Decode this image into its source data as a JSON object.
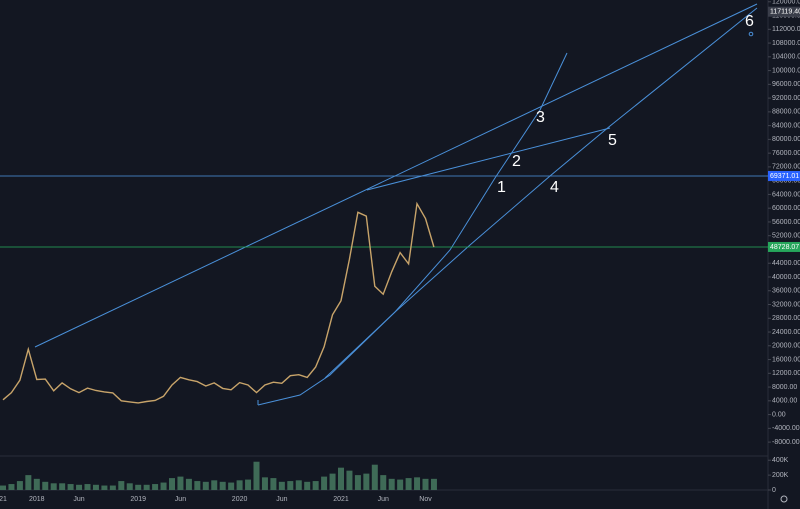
{
  "chart_data": {
    "type": "line",
    "categories": [
      "21",
      null,
      null,
      null,
      "2018",
      null,
      null,
      null,
      null,
      "Jun",
      null,
      null,
      null,
      null,
      null,
      null,
      "2019",
      null,
      null,
      null,
      null,
      "Jun",
      null,
      null,
      null,
      null,
      null,
      null,
      "2020",
      null,
      null,
      null,
      null,
      "Jun",
      null,
      null,
      null,
      null,
      null,
      null,
      "2021",
      null,
      null,
      null,
      null,
      "Jun",
      null,
      null,
      null,
      null,
      "Nov",
      null
    ],
    "series": [
      {
        "color": "#c8a46a",
        "values": [
          4300,
          6400,
          10000,
          19000,
          10200,
          10300,
          6900,
          9200,
          7500,
          6400,
          7700,
          7000,
          6600,
          6300,
          4000,
          3700,
          3400,
          3800,
          4100,
          5300,
          8600,
          10800,
          10100,
          9600,
          8300,
          9200,
          7600,
          7200,
          9300,
          8600,
          6400,
          8600,
          9400,
          9100,
          11300,
          11600,
          10800,
          13800,
          19700,
          29000,
          33100,
          45100,
          58800,
          57700,
          37300,
          35000,
          41500,
          47100,
          43800,
          61300,
          57000,
          48728
        ]
      }
    ],
    "volume": {
      "color": "#3f6b57",
      "values": [
        60000,
        80000,
        120000,
        200000,
        150000,
        110000,
        90000,
        90000,
        80000,
        70000,
        80000,
        70000,
        60000,
        60000,
        120000,
        90000,
        70000,
        70000,
        80000,
        100000,
        160000,
        180000,
        150000,
        120000,
        110000,
        130000,
        110000,
        100000,
        130000,
        140000,
        380000,
        170000,
        160000,
        110000,
        120000,
        130000,
        110000,
        120000,
        180000,
        220000,
        300000,
        260000,
        200000,
        220000,
        340000,
        200000,
        150000,
        140000,
        160000,
        170000,
        150000,
        150000
      ],
      "ylim": [
        0,
        430000
      ],
      "yticks": [
        {
          "value": 400000,
          "label": "400K"
        },
        {
          "value": 200000,
          "label": "200K"
        },
        0
      ]
    },
    "ylim": [
      -11750,
      120520
    ],
    "yticks": [
      {
        "value": 120000,
        "label": "120000.00"
      },
      {
        "value": 116000,
        "label": "116000.00"
      },
      {
        "value": 112000,
        "label": "112000.00"
      },
      {
        "value": 108000,
        "label": "108000.00"
      },
      {
        "value": 104000,
        "label": "104000.00"
      },
      {
        "value": 100000,
        "label": "100000.00"
      },
      {
        "value": 96000,
        "label": "96000.00"
      },
      {
        "value": 92000,
        "label": "92000.00"
      },
      {
        "value": 88000,
        "label": "88000.00"
      },
      {
        "value": 84000,
        "label": "84000.00"
      },
      {
        "value": 80000,
        "label": "80000.00"
      },
      {
        "value": 76000,
        "label": "76000.00"
      },
      {
        "value": 72000,
        "label": "72000.00"
      },
      {
        "value": 68000,
        "label": "68000.00"
      },
      {
        "value": 64000,
        "label": "64000.00"
      },
      {
        "value": 60000,
        "label": "60000.00"
      },
      {
        "value": 56000,
        "label": "56000.00"
      },
      {
        "value": 52000,
        "label": "52000.00"
      },
      {
        "value": 48000,
        "label": "48000.00"
      },
      {
        "value": 44000,
        "label": "44000.00"
      },
      {
        "value": 40000,
        "label": "40000.00"
      },
      {
        "value": 36000,
        "label": "36000.00"
      },
      {
        "value": 32000,
        "label": "32000.00"
      },
      {
        "value": 28000,
        "label": "28000.00"
      },
      {
        "value": 24000,
        "label": "24000.00"
      },
      {
        "value": 20000,
        "label": "20000.00"
      },
      {
        "value": 16000,
        "label": "16000.00"
      },
      {
        "value": 12000,
        "label": "12000.00"
      },
      {
        "value": 8000,
        "label": "8000.00"
      },
      {
        "value": 4000,
        "label": "4000.00"
      },
      {
        "value": 0,
        "label": "0.00"
      },
      {
        "value": -4000,
        "label": "-4000.00"
      },
      {
        "value": -8000,
        "label": "-8000.00"
      }
    ],
    "price_labels": [
      {
        "value": 117119.4,
        "label": "117119.40",
        "color": "#3a3e4a"
      },
      {
        "value": 69371.01,
        "label": "69371.01",
        "color": "#2962ff"
      },
      {
        "value": 48728.07,
        "label": "48728.07",
        "color": "#26a65b"
      }
    ],
    "annotations": [
      "1",
      "2",
      "3",
      "4",
      "5",
      "6"
    ],
    "grid": false
  }
}
